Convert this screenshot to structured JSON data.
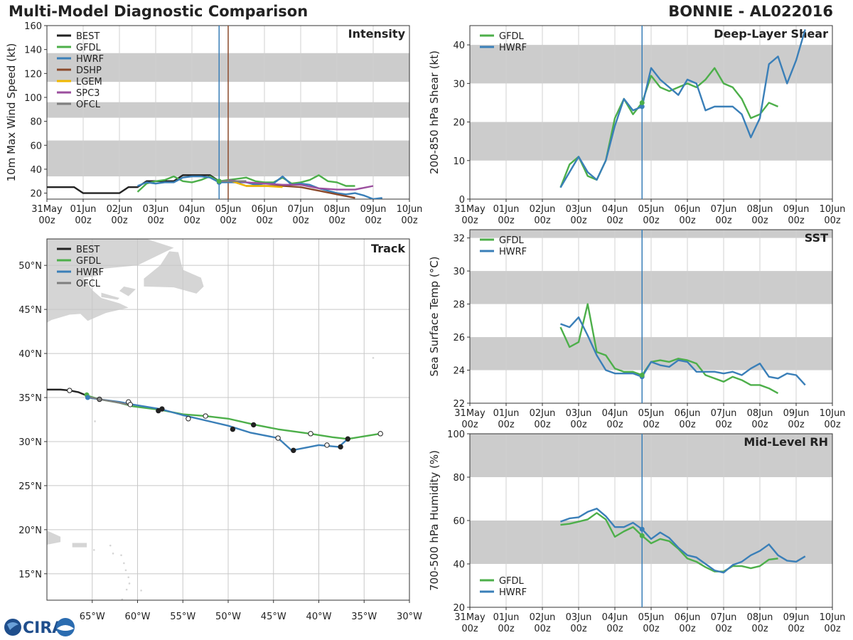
{
  "header": {
    "title": "Multi-Model Diagnostic Comparison",
    "storm": "BONNIE - AL022016"
  },
  "logo": {
    "text": "CIRA"
  },
  "colors": {
    "BEST": "#222222",
    "GFDL": "#4daf4a",
    "HWRF": "#3a7fb8",
    "DSHP": "#8b4a2b",
    "LGEM": "#f0b800",
    "SPC3": "#9b4f9e",
    "OFCL": "#7f7f7f",
    "band": "#cccccc",
    "tau0": "#3a7fb8",
    "land": "#d5d5d5"
  },
  "time_ticks": [
    "31May\n00z",
    "01Jun\n00z",
    "02Jun\n00z",
    "03Jun\n00z",
    "04Jun\n00z",
    "05Jun\n00z",
    "06Jun\n00z",
    "07Jun\n00z",
    "08Jun\n00z",
    "09Jun\n00z",
    "10Jun\n00z"
  ],
  "chart_data": [
    {
      "id": "intensity",
      "type": "line",
      "title": "Intensity",
      "ylabel": "10m Max Wind Speed (kt)",
      "xlim": [
        0,
        10
      ],
      "ylim": [
        15,
        160
      ],
      "yticks": [
        20,
        40,
        60,
        80,
        100,
        120,
        140,
        160
      ],
      "bands": [
        [
          34,
          64
        ],
        [
          83,
          96
        ],
        [
          113,
          137
        ]
      ],
      "vlines": [
        {
          "x": 4.75,
          "color": "#3a7fb8"
        },
        {
          "x": 5.0,
          "color": "#8b4a2b"
        }
      ],
      "legend": [
        "BEST",
        "GFDL",
        "HWRF",
        "DSHP",
        "LGEM",
        "SPC3",
        "OFCL"
      ],
      "series": [
        {
          "name": "BEST",
          "x": [
            0,
            0.25,
            0.5,
            0.75,
            1,
            1.25,
            1.5,
            1.75,
            2,
            2.25,
            2.5,
            2.75,
            3,
            3.25,
            3.5,
            3.75,
            4,
            4.25,
            4.5,
            4.75
          ],
          "y": [
            25,
            25,
            25,
            25,
            20,
            20,
            20,
            20,
            20,
            25,
            25,
            30,
            30,
            30,
            30,
            35,
            35,
            35,
            35,
            30
          ]
        },
        {
          "name": "GFDL",
          "x": [
            2.5,
            2.75,
            3,
            3.25,
            3.5,
            3.75,
            4,
            4.25,
            4.5,
            4.75,
            5,
            5.25,
            5.5,
            5.75,
            6,
            6.25,
            6.5,
            6.75,
            7,
            7.25,
            7.5,
            7.75,
            8,
            8.25,
            8.5
          ],
          "y": [
            21,
            28,
            30,
            31,
            34,
            30,
            29,
            31,
            34,
            30,
            31,
            32,
            33,
            30,
            29,
            29,
            33,
            28,
            29,
            31,
            35,
            30,
            29,
            26,
            26
          ]
        },
        {
          "name": "HWRF",
          "x": [
            2.5,
            2.75,
            3,
            3.25,
            3.5,
            3.75,
            4,
            4.25,
            4.5,
            4.75,
            5,
            5.25,
            5.5,
            5.75,
            6,
            6.25,
            6.5,
            6.75,
            7,
            7.25,
            7.5,
            7.75,
            8,
            8.25,
            8.5,
            8.75,
            9,
            9.25
          ],
          "y": [
            26,
            29,
            28,
            29,
            29,
            33,
            34,
            34,
            33,
            29,
            29,
            29,
            29,
            27,
            28,
            28,
            34,
            27,
            28,
            27,
            24,
            22,
            20,
            19,
            20,
            18,
            15,
            16
          ]
        },
        {
          "name": "DSHP",
          "x": [
            5,
            5.5,
            6,
            6.5,
            7,
            7.5,
            8,
            8.5
          ],
          "y": [
            31,
            26,
            26,
            26,
            25,
            22,
            19,
            16
          ]
        },
        {
          "name": "LGEM",
          "x": [
            5,
            5.5,
            6,
            6.5
          ],
          "y": [
            31,
            26,
            26,
            25
          ]
        },
        {
          "name": "SPC3",
          "x": [
            5,
            5.5,
            6,
            6.5,
            7,
            7.5,
            8,
            8.5,
            9
          ],
          "y": [
            31,
            29,
            28,
            27,
            27,
            24,
            23,
            23,
            26
          ]
        },
        {
          "name": "OFCL",
          "x": [
            4.75,
            5,
            5.25,
            5.5
          ],
          "y": [
            30,
            30,
            30,
            30
          ]
        }
      ],
      "markers": [
        {
          "series": "HWRF",
          "x": 4.75,
          "y": 29
        },
        {
          "series": "GFDL",
          "x": 4.75,
          "y": 30
        }
      ]
    },
    {
      "id": "shear",
      "type": "line",
      "title": "Deep-Layer Shear",
      "ylabel": "200-850 hPa Shear (kt)",
      "xlim": [
        0,
        10
      ],
      "ylim": [
        0,
        45
      ],
      "yticks": [
        0,
        10,
        20,
        30,
        40
      ],
      "bands": [
        [
          10,
          20
        ],
        [
          30,
          40
        ]
      ],
      "vlines": [
        {
          "x": 4.75,
          "color": "#3a7fb8"
        }
      ],
      "legend": [
        "GFDL",
        "HWRF"
      ],
      "series": [
        {
          "name": "GFDL",
          "x": [
            2.5,
            2.75,
            3,
            3.25,
            3.5,
            3.75,
            4,
            4.25,
            4.5,
            4.75,
            5,
            5.25,
            5.5,
            5.75,
            6,
            6.25,
            6.5,
            6.75,
            7,
            7.25,
            7.5,
            7.75,
            8,
            8.25,
            8.5
          ],
          "y": [
            3,
            9,
            11,
            6,
            5,
            10,
            21,
            26,
            22,
            25,
            32,
            29,
            28,
            29,
            30,
            29,
            31,
            34,
            30,
            29,
            26,
            21,
            22,
            25,
            24
          ]
        },
        {
          "name": "HWRF",
          "x": [
            2.5,
            2.75,
            3,
            3.25,
            3.5,
            3.75,
            4,
            4.25,
            4.5,
            4.75,
            5,
            5.25,
            5.5,
            5.75,
            6,
            6.25,
            6.5,
            6.75,
            7,
            7.25,
            7.5,
            7.75,
            8,
            8.25,
            8.5,
            8.75,
            9,
            9.25
          ],
          "y": [
            3,
            7,
            11,
            7,
            5,
            10,
            19,
            26,
            23,
            24,
            34,
            31,
            29,
            27,
            31,
            30,
            23,
            24,
            24,
            24,
            22,
            16,
            21,
            35,
            37,
            30,
            36,
            44
          ]
        }
      ],
      "markers": [
        {
          "series": "HWRF",
          "x": 4.75,
          "y": 24
        },
        {
          "series": "GFDL",
          "x": 4.75,
          "y": 25
        }
      ]
    },
    {
      "id": "sst",
      "type": "line",
      "title": "SST",
      "ylabel": "Sea Surface Temp (°C)",
      "xlim": [
        0,
        10
      ],
      "ylim": [
        22,
        32.5
      ],
      "yticks": [
        22,
        24,
        26,
        28,
        30,
        32
      ],
      "bands": [
        [
          24,
          26
        ],
        [
          28,
          30
        ],
        [
          32,
          34
        ]
      ],
      "vlines": [
        {
          "x": 4.75,
          "color": "#3a7fb8"
        }
      ],
      "legend": [
        "GFDL",
        "HWRF"
      ],
      "series": [
        {
          "name": "GFDL",
          "x": [
            2.5,
            2.75,
            3,
            3.25,
            3.5,
            3.75,
            4,
            4.25,
            4.5,
            4.75,
            5,
            5.25,
            5.5,
            5.75,
            6,
            6.25,
            6.5,
            6.75,
            7,
            7.25,
            7.5,
            7.75,
            8,
            8.25,
            8.5
          ],
          "y": [
            26.6,
            25.4,
            25.7,
            28.0,
            25.1,
            24.9,
            24.1,
            23.9,
            23.9,
            23.7,
            24.5,
            24.6,
            24.5,
            24.7,
            24.6,
            24.4,
            23.7,
            23.5,
            23.3,
            23.6,
            23.4,
            23.1,
            23.1,
            22.9,
            22.6
          ]
        },
        {
          "name": "HWRF",
          "x": [
            2.5,
            2.75,
            3,
            3.25,
            3.5,
            3.75,
            4,
            4.25,
            4.5,
            4.75,
            5,
            5.25,
            5.5,
            5.75,
            6,
            6.25,
            6.5,
            6.75,
            7,
            7.25,
            7.5,
            7.75,
            8,
            8.25,
            8.5,
            8.75,
            9,
            9.25
          ],
          "y": [
            26.8,
            26.6,
            27.2,
            26.1,
            24.9,
            24.0,
            23.8,
            23.8,
            23.8,
            23.6,
            24.5,
            24.3,
            24.2,
            24.6,
            24.5,
            23.9,
            23.9,
            23.9,
            23.8,
            23.9,
            23.7,
            24.1,
            24.4,
            23.6,
            23.5,
            23.8,
            23.7,
            23.1
          ]
        }
      ],
      "markers": [
        {
          "series": "HWRF",
          "x": 4.75,
          "y": 23.6
        },
        {
          "series": "GFDL",
          "x": 4.75,
          "y": 23.7
        }
      ]
    },
    {
      "id": "rh",
      "type": "line",
      "title": "Mid-Level RH",
      "ylabel": "700-500 hPa Humidity (%)",
      "xlim": [
        0,
        10
      ],
      "ylim": [
        20,
        100
      ],
      "yticks": [
        20,
        40,
        60,
        80,
        100
      ],
      "bands": [
        [
          40,
          60
        ],
        [
          80,
          100
        ]
      ],
      "vlines": [
        {
          "x": 4.75,
          "color": "#3a7fb8"
        }
      ],
      "legend": [
        "GFDL",
        "HWRF"
      ],
      "legend_position": "bottom-left",
      "series": [
        {
          "name": "GFDL",
          "x": [
            2.5,
            2.75,
            3,
            3.25,
            3.5,
            3.75,
            4,
            4.25,
            4.5,
            4.75,
            5,
            5.25,
            5.5,
            5.75,
            6,
            6.25,
            6.5,
            6.75,
            7,
            7.25,
            7.5,
            7.75,
            8,
            8.25,
            8.5
          ],
          "y": [
            58,
            58.5,
            59.5,
            60.5,
            63.5,
            60.5,
            52.5,
            55,
            57,
            53,
            49.5,
            51.5,
            50.5,
            47,
            42.5,
            41,
            38.5,
            36.5,
            36.5,
            39,
            39,
            38,
            39,
            42,
            42.5
          ]
        },
        {
          "name": "HWRF",
          "x": [
            2.5,
            2.75,
            3,
            3.25,
            3.5,
            3.75,
            4,
            4.25,
            4.5,
            4.75,
            5,
            5.25,
            5.5,
            5.75,
            6,
            6.25,
            6.5,
            6.75,
            7,
            7.25,
            7.5,
            7.75,
            8,
            8.25,
            8.5,
            8.75,
            9,
            9.25
          ],
          "y": [
            59.5,
            61,
            61.5,
            64,
            65.5,
            62,
            57,
            57,
            59,
            56,
            51.5,
            54.5,
            52,
            47.5,
            44,
            43,
            40,
            37,
            36,
            39.5,
            41,
            44,
            46,
            49,
            44,
            41.5,
            41,
            43.5
          ]
        }
      ],
      "markers": [
        {
          "series": "HWRF",
          "x": 4.75,
          "y": 56
        },
        {
          "series": "GFDL",
          "x": 4.75,
          "y": 53
        }
      ]
    },
    {
      "id": "track",
      "type": "line",
      "title": "Track",
      "xlabel_ticks": [
        "65°W",
        "60°W",
        "55°W",
        "50°W",
        "45°W",
        "40°W",
        "35°W",
        "30°W"
      ],
      "ylabel_ticks": [
        "15°N",
        "20°N",
        "25°N",
        "30°N",
        "35°N",
        "40°N",
        "45°N",
        "50°N"
      ],
      "xlim": [
        -70,
        -30
      ],
      "ylim": [
        12,
        53
      ],
      "legend": [
        "BEST",
        "GFDL",
        "HWRF",
        "OFCL"
      ],
      "series": [
        {
          "name": "BEST",
          "lon": [
            -70,
            -68.5,
            -67.5,
            -66.5,
            -65.8,
            -65.5
          ],
          "lat": [
            35.9,
            35.9,
            35.8,
            35.6,
            35.3,
            35.1
          ]
        },
        {
          "name": "OFCL",
          "lon": [
            -65.5,
            -64.2,
            -62.5,
            -61
          ],
          "lat": [
            35.1,
            34.8,
            34.5,
            34.2
          ]
        },
        {
          "name": "GFDL",
          "lon": [
            -65.5,
            -64.2,
            -62,
            -60.5,
            -57.5,
            -55,
            -52.5,
            -50,
            -47,
            -44.5,
            -41,
            -38.5,
            -36.8,
            -35,
            -33.2
          ],
          "lat": [
            35.2,
            34.8,
            34.4,
            34.0,
            33.6,
            33.1,
            32.9,
            32.6,
            31.9,
            31.4,
            30.9,
            30.5,
            30.3,
            30.6,
            30.9
          ]
        },
        {
          "name": "HWRF",
          "lon": [
            -65.5,
            -64.2,
            -62,
            -60.5,
            -57.5,
            -55,
            -52.5,
            -50,
            -47.5,
            -44.5,
            -43,
            -41.5,
            -40,
            -37.8,
            -36.8
          ],
          "lat": [
            35.0,
            34.8,
            34.5,
            34.2,
            33.7,
            33.0,
            32.4,
            31.8,
            31.0,
            30.4,
            29.0,
            29.3,
            29.6,
            29.4,
            30.3
          ]
        }
      ],
      "track_points": [
        {
          "lon": -67.5,
          "lat": 35.8,
          "fill": "open"
        },
        {
          "lon": -64.2,
          "lat": 34.8,
          "fill": "grey"
        },
        {
          "lon": -61,
          "lat": 34.5,
          "fill": "open"
        },
        {
          "lon": -60.8,
          "lat": 34.2,
          "fill": "open"
        },
        {
          "lon": -57.7,
          "lat": 33.5,
          "fill": "filled"
        },
        {
          "lon": -57.3,
          "lat": 33.7,
          "fill": "filled"
        },
        {
          "lon": -54.4,
          "lat": 32.6,
          "fill": "open"
        },
        {
          "lon": -52.5,
          "lat": 32.9,
          "fill": "open"
        },
        {
          "lon": -49.5,
          "lat": 31.4,
          "fill": "filled"
        },
        {
          "lon": -47.2,
          "lat": 31.9,
          "fill": "filled"
        },
        {
          "lon": -44.5,
          "lat": 30.4,
          "fill": "open"
        },
        {
          "lon": -42.8,
          "lat": 29.0,
          "fill": "filled"
        },
        {
          "lon": -40.9,
          "lat": 30.9,
          "fill": "open"
        },
        {
          "lon": -39.1,
          "lat": 29.6,
          "fill": "open"
        },
        {
          "lon": -37.6,
          "lat": 29.4,
          "fill": "filled"
        },
        {
          "lon": -36.8,
          "lat": 30.3,
          "fill": "filled"
        },
        {
          "lon": -33.2,
          "lat": 30.9,
          "fill": "open"
        }
      ]
    }
  ]
}
